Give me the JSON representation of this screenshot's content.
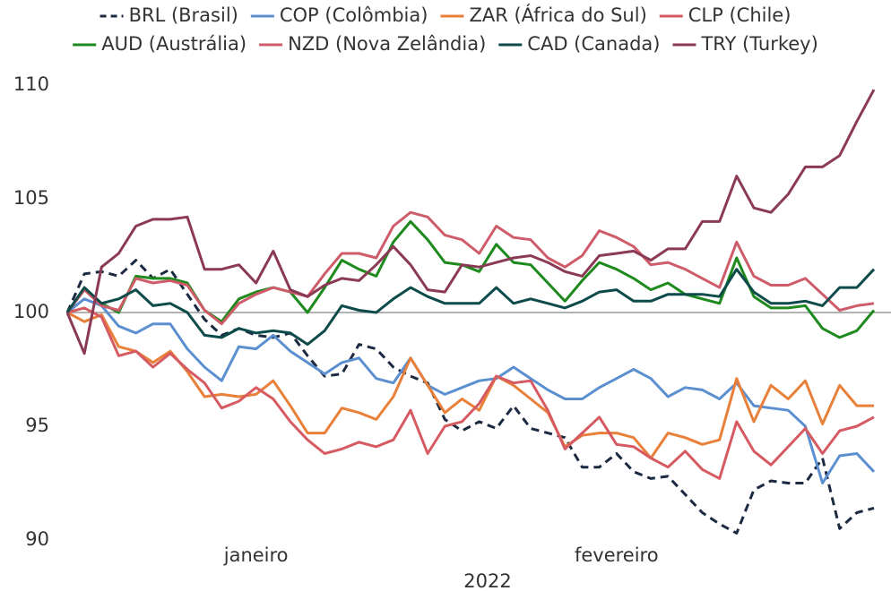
{
  "chart_data": {
    "type": "line",
    "x": [
      0,
      1,
      2,
      3,
      4,
      5,
      6,
      7,
      8,
      9,
      10,
      11,
      12,
      13,
      14,
      15,
      16,
      17,
      18,
      19,
      20,
      21,
      22,
      23,
      24,
      25,
      26,
      27,
      28,
      29,
      30,
      31,
      32,
      33,
      34,
      35,
      36,
      37,
      38,
      39,
      40,
      41,
      42,
      43,
      44,
      45,
      46,
      47
    ],
    "xlim": [
      0,
      47
    ],
    "xticks": [
      {
        "value": 11,
        "label": "janeiro"
      },
      {
        "value": 32,
        "label": "fevereiro"
      }
    ],
    "xlabel": "2022",
    "ylim": [
      90,
      110
    ],
    "yticks": [
      90,
      95,
      100,
      105,
      110
    ],
    "reference_line": 100,
    "legend": "top",
    "series": [
      {
        "name": "BRL (Brasil)",
        "color": "#1b2a41",
        "dashed": true,
        "values": [
          100,
          101.7,
          101.8,
          101.6,
          102.3,
          101.5,
          101.9,
          100.8,
          99.7,
          99.0,
          99.3,
          99.0,
          98.9,
          99.1,
          98.1,
          97.2,
          97.3,
          98.6,
          98.4,
          97.6,
          97.2,
          96.9,
          95.3,
          94.8,
          95.2,
          94.9,
          95.9,
          94.9,
          94.7,
          94.5,
          93.2,
          93.2,
          93.8,
          93.0,
          92.7,
          92.8,
          92.0,
          91.2,
          90.7,
          90.3,
          92.2,
          92.6,
          92.5,
          92.5,
          93.6,
          90.5,
          91.2,
          91.4
        ]
      },
      {
        "name": "COP (Colômbia)",
        "color": "#5b8fd0",
        "values": [
          100,
          100.6,
          100.3,
          99.4,
          99.1,
          99.5,
          99.5,
          98.4,
          97.6,
          97.0,
          98.5,
          98.4,
          99.0,
          98.3,
          97.8,
          97.3,
          97.8,
          98.0,
          97.1,
          96.9,
          98.0,
          96.8,
          96.4,
          96.7,
          97.0,
          97.1,
          97.6,
          97.1,
          96.6,
          96.2,
          96.2,
          96.7,
          97.1,
          97.5,
          97.1,
          96.3,
          96.7,
          96.6,
          96.2,
          96.9,
          95.9,
          95.8,
          95.7,
          95.0,
          92.5,
          93.7,
          93.8,
          93.0
        ]
      },
      {
        "name": "ZAR (África do Sul)",
        "color": "#e8803a",
        "values": [
          100,
          99.6,
          99.9,
          98.5,
          98.3,
          97.8,
          98.3,
          97.4,
          96.3,
          96.4,
          96.3,
          96.4,
          97.0,
          95.9,
          94.7,
          94.7,
          95.8,
          95.6,
          95.3,
          96.3,
          98.0,
          96.8,
          95.6,
          96.2,
          95.7,
          97.2,
          96.8,
          96.2,
          95.6,
          94.1,
          94.6,
          94.7,
          94.7,
          94.5,
          93.6,
          94.7,
          94.5,
          94.2,
          94.4,
          97.1,
          95.2,
          96.8,
          96.2,
          97.0,
          95.1,
          96.8,
          95.9,
          95.9
        ]
      },
      {
        "name": "CLP (Chile)",
        "color": "#d65a62",
        "values": [
          100,
          100.2,
          99.8,
          98.1,
          98.3,
          97.6,
          98.2,
          97.5,
          96.9,
          95.8,
          96.1,
          96.7,
          96.2,
          95.2,
          94.4,
          93.8,
          94.0,
          94.3,
          94.1,
          94.4,
          95.7,
          93.8,
          95.0,
          95.2,
          96.0,
          97.2,
          96.9,
          97.0,
          95.7,
          94.0,
          94.7,
          95.4,
          94.2,
          94.1,
          93.6,
          93.2,
          93.9,
          93.1,
          92.7,
          95.2,
          93.9,
          93.3,
          94.1,
          94.9,
          93.8,
          94.8,
          95.0,
          95.4
        ]
      },
      {
        "name": "AUD (Austrália)",
        "color": "#1e8a1e",
        "values": [
          100,
          101.0,
          100.4,
          100.0,
          101.6,
          101.5,
          101.5,
          101.3,
          100.1,
          99.6,
          100.6,
          100.9,
          101.1,
          100.9,
          100.0,
          101.1,
          102.3,
          101.9,
          101.6,
          103.1,
          104.0,
          103.2,
          102.2,
          102.1,
          101.8,
          103.0,
          102.2,
          102.1,
          101.3,
          100.5,
          101.4,
          102.2,
          101.9,
          101.5,
          101.0,
          101.3,
          100.8,
          100.6,
          100.4,
          102.4,
          100.7,
          100.2,
          100.2,
          100.3,
          99.3,
          98.9,
          99.2,
          100.1
        ]
      },
      {
        "name": "NZD (Nova Zelândia)",
        "color": "#cf5c6a",
        "values": [
          100,
          101.0,
          100.3,
          100.1,
          101.5,
          101.3,
          101.4,
          101.2,
          100.1,
          99.5,
          100.4,
          100.8,
          101.1,
          100.9,
          100.7,
          101.7,
          102.6,
          102.6,
          102.4,
          103.8,
          104.4,
          104.2,
          103.4,
          103.2,
          102.6,
          103.8,
          103.3,
          103.2,
          102.4,
          102.0,
          102.5,
          103.6,
          103.3,
          102.9,
          102.1,
          102.2,
          101.9,
          101.5,
          101.1,
          103.1,
          101.6,
          101.2,
          101.2,
          101.5,
          100.8,
          100.1,
          100.3,
          100.4
        ]
      },
      {
        "name": "CAD (Canada)",
        "color": "#0d4a4a",
        "values": [
          100,
          101.1,
          100.4,
          100.6,
          101.0,
          100.3,
          100.4,
          100.0,
          99.0,
          98.9,
          99.3,
          99.1,
          99.2,
          99.1,
          98.6,
          99.2,
          100.3,
          100.1,
          100.0,
          100.6,
          101.1,
          100.7,
          100.4,
          100.4,
          100.4,
          101.1,
          100.4,
          100.6,
          100.4,
          100.2,
          100.5,
          100.9,
          101.0,
          100.5,
          100.5,
          100.8,
          100.8,
          100.8,
          100.7,
          101.9,
          100.9,
          100.4,
          100.4,
          100.5,
          100.3,
          101.1,
          101.1,
          101.9
        ]
      },
      {
        "name": "TRY (Turkey)",
        "color": "#8b3a55",
        "values": [
          100,
          98.2,
          102.0,
          102.6,
          103.8,
          104.1,
          104.1,
          104.2,
          101.9,
          101.9,
          102.1,
          101.3,
          102.7,
          101.0,
          100.7,
          101.2,
          101.5,
          101.4,
          102.1,
          102.9,
          102.1,
          101.0,
          100.9,
          102.1,
          102.0,
          102.2,
          102.4,
          102.5,
          102.2,
          101.8,
          101.6,
          102.5,
          102.6,
          102.7,
          102.3,
          102.8,
          102.8,
          104.0,
          104.0,
          106.0,
          104.6,
          104.4,
          105.2,
          106.4,
          106.4,
          106.9,
          108.4,
          109.8
        ]
      }
    ]
  }
}
